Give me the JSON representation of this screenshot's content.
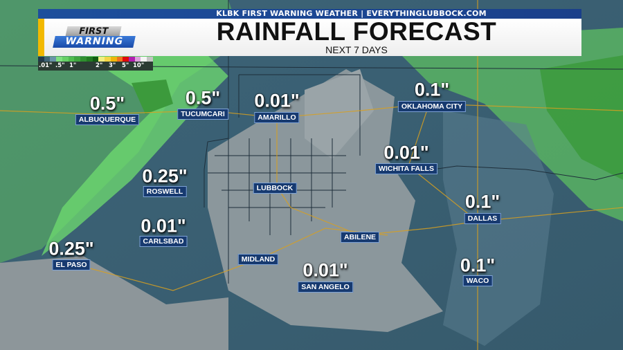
{
  "header": {
    "station_line": "KLBK FIRST WARNING WEATHER | EVERYTHINGLUBBOCK.COM",
    "title": "RAINFALL FORECAST",
    "subtitle": "NEXT 7 DAYS",
    "logo_text": [
      "FIRST",
      "WARNING"
    ],
    "colors": {
      "banner_blue": "#1d4f9c",
      "accent_yellow": "#f2b900"
    }
  },
  "legend": {
    "labels": [
      ".01\"",
      ".5\"",
      "1\"",
      "2\"",
      "3\"",
      "5\"",
      "10\""
    ],
    "colors": [
      "#22394a",
      "#3f6678",
      "#6a93a8",
      "#7fe07f",
      "#66d066",
      "#50bd50",
      "#3fa63f",
      "#2f8f2f",
      "#227a22",
      "#125c12",
      "#f2ee80",
      "#f3d545",
      "#efb40a",
      "#ee7420",
      "#e00a0a",
      "#b01fb0",
      "#dca0dc",
      "#f4f4f4",
      "#c4c4c4"
    ]
  },
  "forecasts": [
    {
      "city": "ALBUQUERQUE",
      "amount": "0.5\""
    },
    {
      "city": "TUCUMCARI",
      "amount": "0.5\""
    },
    {
      "city": "AMARILLO",
      "amount": "0.01\""
    },
    {
      "city": "OKLAHOMA CITY",
      "amount": "0.1\""
    },
    {
      "city": "WICHITA FALLS",
      "amount": "0.01\""
    },
    {
      "city": "ROSWELL",
      "amount": "0.25\""
    },
    {
      "city": "LUBBOCK",
      "amount": ""
    },
    {
      "city": "DALLAS",
      "amount": "0.1\""
    },
    {
      "city": "CARLSBAD",
      "amount": "0.01\""
    },
    {
      "city": "ABILENE",
      "amount": ""
    },
    {
      "city": "EL PASO",
      "amount": "0.25\""
    },
    {
      "city": "MIDLAND",
      "amount": ""
    },
    {
      "city": "SAN ANGELO",
      "amount": "0.01\""
    },
    {
      "city": "WACO",
      "amount": "0.1\""
    }
  ]
}
